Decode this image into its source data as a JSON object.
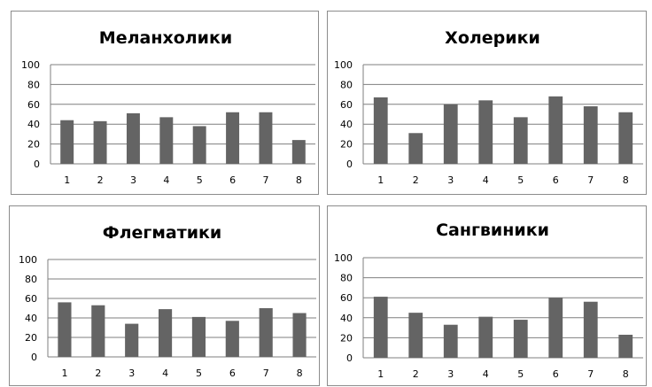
{
  "chart_data": [
    {
      "type": "bar",
      "title": "Меланхолики",
      "categories": [
        "1",
        "2",
        "3",
        "4",
        "5",
        "6",
        "7",
        "8"
      ],
      "values": [
        44,
        43,
        51,
        47,
        38,
        52,
        52,
        24
      ],
      "ylim": [
        0,
        100
      ],
      "yticks": [
        "0",
        "20",
        "40",
        "60",
        "80",
        "100"
      ],
      "grid": true,
      "bar_color": "#646464"
    },
    {
      "type": "bar",
      "title": "Холерики",
      "categories": [
        "1",
        "2",
        "3",
        "4",
        "5",
        "6",
        "7",
        "8"
      ],
      "values": [
        67,
        31,
        60,
        64,
        47,
        68,
        58,
        52
      ],
      "ylim": [
        0,
        100
      ],
      "yticks": [
        "0",
        "20",
        "40",
        "60",
        "80",
        "100"
      ],
      "grid": true,
      "bar_color": "#646464"
    },
    {
      "type": "bar",
      "title": "Флегматики",
      "categories": [
        "1",
        "2",
        "3",
        "4",
        "5",
        "6",
        "7",
        "8"
      ],
      "values": [
        56,
        53,
        34,
        49,
        41,
        37,
        50,
        45
      ],
      "ylim": [
        0,
        100
      ],
      "yticks": [
        "0",
        "20",
        "40",
        "60",
        "80",
        "100"
      ],
      "grid": true,
      "bar_color": "#646464"
    },
    {
      "type": "bar",
      "title": "Сангвиники",
      "categories": [
        "1",
        "2",
        "3",
        "4",
        "5",
        "6",
        "7",
        "8"
      ],
      "values": [
        61,
        45,
        33,
        41,
        38,
        60,
        56,
        23
      ],
      "ylim": [
        0,
        100
      ],
      "yticks": [
        "0",
        "20",
        "40",
        "60",
        "80",
        "100"
      ],
      "grid": true,
      "bar_color": "#646464"
    }
  ]
}
